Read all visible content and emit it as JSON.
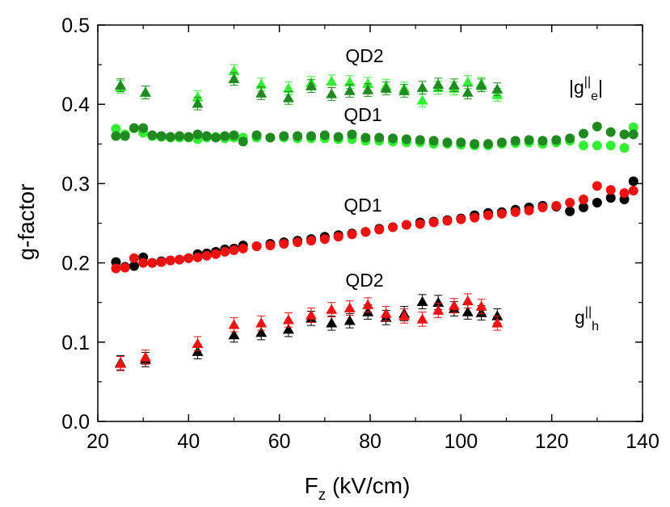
{
  "chart_data": {
    "type": "scatter",
    "xlabel": "F",
    "xlabel_sub": "z",
    "xlabel_unit": " (kV/cm)",
    "ylabel": "g-factor",
    "xlim": [
      20,
      140
    ],
    "ylim": [
      0.0,
      0.5
    ],
    "xticks": [
      20,
      40,
      60,
      80,
      100,
      120,
      140
    ],
    "yticks": [
      "0.0",
      "0.1",
      "0.2",
      "0.3",
      "0.4",
      "0.5"
    ],
    "annotations": {
      "qd2_top": "QD2",
      "qd1_top": "QD1",
      "qd1_mid": "QD1",
      "qd2_bottom": "QD2",
      "ge_pre": "|g",
      "ge_sup": "||",
      "ge_sub": "e",
      "ge_post": "|",
      "gh_pre": "g",
      "gh_sup": "||",
      "gh_sub": "h"
    },
    "colors": {
      "light_green": "#33ee33",
      "dark_green": "#1f8a1f",
      "black": "#000000",
      "red": "#ee1111"
    },
    "series": [
      {
        "name": "QD1 electron (light green)",
        "marker": "circle",
        "color": "#33ee33",
        "error": 0,
        "x": [
          24,
          26,
          28,
          30,
          32,
          34,
          36,
          38,
          40,
          42,
          44,
          46,
          48,
          50,
          52,
          55,
          58,
          61,
          64,
          67,
          70,
          73,
          76,
          79,
          82,
          85,
          88,
          91,
          94,
          97,
          100,
          103,
          106,
          109,
          112,
          115,
          118,
          121,
          124,
          127,
          130,
          133,
          136,
          138
        ],
        "y": [
          0.369,
          0.362,
          0.37,
          0.364,
          0.36,
          0.359,
          0.358,
          0.358,
          0.358,
          0.356,
          0.358,
          0.359,
          0.357,
          0.358,
          0.358,
          0.358,
          0.358,
          0.358,
          0.357,
          0.357,
          0.357,
          0.356,
          0.356,
          0.354,
          0.354,
          0.353,
          0.352,
          0.352,
          0.35,
          0.35,
          0.349,
          0.348,
          0.348,
          0.35,
          0.351,
          0.352,
          0.35,
          0.352,
          0.354,
          0.348,
          0.348,
          0.348,
          0.345,
          0.371
        ]
      },
      {
        "name": "QD1 electron (dark green)",
        "marker": "circle",
        "color": "#1f8a1f",
        "error": 0,
        "x": [
          24,
          26,
          28,
          30,
          32,
          34,
          36,
          38,
          40,
          42,
          44,
          46,
          48,
          50,
          52,
          55,
          58,
          61,
          64,
          67,
          70,
          73,
          76,
          79,
          82,
          85,
          88,
          91,
          94,
          97,
          100,
          103,
          106,
          109,
          112,
          115,
          118,
          121,
          124,
          127,
          130,
          133,
          136,
          138
        ],
        "y": [
          0.36,
          0.36,
          0.37,
          0.37,
          0.361,
          0.36,
          0.359,
          0.36,
          0.359,
          0.362,
          0.36,
          0.358,
          0.36,
          0.361,
          0.353,
          0.361,
          0.358,
          0.36,
          0.36,
          0.36,
          0.361,
          0.359,
          0.362,
          0.358,
          0.358,
          0.357,
          0.356,
          0.355,
          0.354,
          0.352,
          0.352,
          0.35,
          0.35,
          0.352,
          0.354,
          0.355,
          0.354,
          0.355,
          0.357,
          0.363,
          0.372,
          0.365,
          0.362,
          0.362
        ]
      },
      {
        "name": "QD1 hole (black)",
        "marker": "circle",
        "color": "#000000",
        "error": 0,
        "x": [
          24,
          26,
          28,
          30,
          32,
          34,
          36,
          38,
          40,
          42,
          44,
          46,
          48,
          50,
          52,
          55,
          58,
          61,
          64,
          67,
          70,
          73,
          76,
          79,
          82,
          85,
          88,
          91,
          94,
          97,
          100,
          103,
          106,
          109,
          112,
          115,
          118,
          121,
          124,
          127,
          130,
          133,
          136,
          138
        ],
        "y": [
          0.201,
          0.195,
          0.196,
          0.207,
          0.2,
          0.202,
          0.203,
          0.204,
          0.206,
          0.211,
          0.212,
          0.214,
          0.217,
          0.218,
          0.222,
          0.221,
          0.224,
          0.226,
          0.228,
          0.23,
          0.233,
          0.235,
          0.237,
          0.239,
          0.243,
          0.245,
          0.248,
          0.251,
          0.252,
          0.254,
          0.256,
          0.26,
          0.263,
          0.264,
          0.267,
          0.27,
          0.272,
          0.271,
          0.265,
          0.27,
          0.276,
          0.282,
          0.28,
          0.303
        ]
      },
      {
        "name": "QD1 hole (red)",
        "marker": "circle",
        "color": "#ee1111",
        "error": 0,
        "x": [
          24,
          26,
          28,
          30,
          32,
          34,
          36,
          38,
          40,
          42,
          44,
          46,
          48,
          50,
          52,
          55,
          58,
          61,
          64,
          67,
          70,
          73,
          76,
          79,
          82,
          85,
          88,
          91,
          94,
          97,
          100,
          103,
          106,
          109,
          112,
          115,
          118,
          121,
          124,
          127,
          130,
          133,
          136,
          138
        ],
        "y": [
          0.193,
          0.194,
          0.206,
          0.2,
          0.2,
          0.201,
          0.203,
          0.204,
          0.206,
          0.207,
          0.209,
          0.211,
          0.214,
          0.216,
          0.218,
          0.221,
          0.222,
          0.224,
          0.226,
          0.228,
          0.23,
          0.233,
          0.236,
          0.239,
          0.242,
          0.245,
          0.248,
          0.249,
          0.251,
          0.253,
          0.255,
          0.257,
          0.26,
          0.262,
          0.264,
          0.266,
          0.27,
          0.272,
          0.276,
          0.28,
          0.297,
          0.292,
          0.288,
          0.291
        ]
      },
      {
        "name": "QD2 electron (light green)",
        "marker": "triangle",
        "color": "#33ee33",
        "error": 0.008,
        "x": [
          25,
          30.5,
          42,
          50,
          56,
          62,
          67,
          71.5,
          75.5,
          79.5,
          83.5,
          87.5,
          91.5,
          95,
          98.5,
          101.5,
          104.5,
          108
        ],
        "y": [
          0.422,
          0.415,
          0.409,
          0.442,
          0.425,
          0.42,
          0.427,
          0.429,
          0.428,
          0.426,
          0.423,
          0.42,
          0.405,
          0.421,
          0.42,
          0.428,
          0.426,
          0.412
        ]
      },
      {
        "name": "QD2 electron (dark green)",
        "marker": "triangle",
        "color": "#1f8a1f",
        "error": 0.008,
        "x": [
          25,
          30.5,
          42,
          50,
          56,
          62,
          67,
          71.5,
          75.5,
          79.5,
          83.5,
          87.5,
          91.5,
          95,
          98.5,
          101.5,
          104.5,
          108
        ],
        "y": [
          0.424,
          0.415,
          0.401,
          0.432,
          0.414,
          0.408,
          0.423,
          0.413,
          0.417,
          0.418,
          0.42,
          0.417,
          0.421,
          0.425,
          0.424,
          0.415,
          0.424,
          0.419
        ]
      },
      {
        "name": "QD2 hole (black)",
        "marker": "triangle",
        "color": "#000000",
        "error": 0.009,
        "x": [
          25,
          30.5,
          42,
          50,
          56,
          62,
          67,
          71.5,
          75.5,
          79.5,
          83.5,
          87.5,
          91.5,
          95,
          98.5,
          101.5,
          104.5,
          108
        ],
        "y": [
          0.074,
          0.078,
          0.088,
          0.109,
          0.112,
          0.116,
          0.13,
          0.124,
          0.127,
          0.138,
          0.131,
          0.136,
          0.151,
          0.15,
          0.142,
          0.138,
          0.137,
          0.133
        ]
      },
      {
        "name": "QD2 hole (red)",
        "marker": "triangle",
        "color": "#ee1111",
        "error": 0.009,
        "x": [
          25,
          30.5,
          42,
          50,
          56,
          62,
          67,
          71.5,
          75.5,
          79.5,
          83.5,
          87.5,
          91.5,
          95,
          98.5,
          101.5,
          104.5,
          108
        ],
        "y": [
          0.073,
          0.081,
          0.098,
          0.122,
          0.124,
          0.128,
          0.134,
          0.141,
          0.143,
          0.147,
          0.136,
          0.133,
          0.129,
          0.14,
          0.146,
          0.152,
          0.145,
          0.124
        ]
      }
    ]
  }
}
